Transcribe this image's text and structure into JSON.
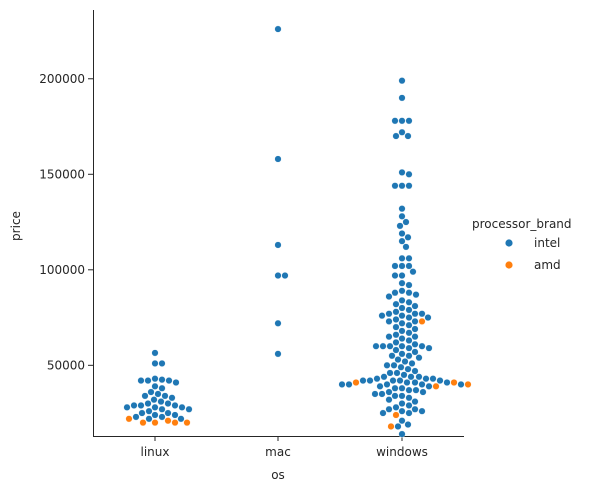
{
  "chart_data": {
    "type": "scatter",
    "subtype": "swarm",
    "title": "",
    "xlabel": "os",
    "ylabel": "price",
    "categories": [
      "linux",
      "mac",
      "windows"
    ],
    "y_ticks": [
      50000,
      100000,
      150000,
      200000
    ],
    "y_tick_labels": [
      "50000",
      "100000",
      "150000",
      "200000"
    ],
    "ylim": [
      13000,
      236000
    ],
    "grid": false,
    "legend": {
      "title": "processor_brand",
      "placement": "right",
      "entries": [
        {
          "label": "intel",
          "color": "#1f77b4"
        },
        {
          "label": "amd",
          "color": "#ff7f0e"
        }
      ]
    },
    "series": [
      {
        "name": "intel",
        "color": "#1f77b4",
        "points": {
          "linux": [
            56500,
            51000,
            51000,
            43000,
            42500,
            42000,
            42000,
            42000,
            41000,
            39000,
            38000,
            36000,
            35000,
            34000,
            34000,
            33000,
            32000,
            31000,
            30000,
            30000,
            29000,
            29000,
            29000,
            28000,
            28000,
            28000,
            27000,
            27000,
            26000,
            25000,
            25000,
            24000,
            24000,
            23000,
            23000,
            22000,
            22000
          ],
          "mac": [
            226000,
            158000,
            113000,
            97000,
            97000,
            72000,
            56000
          ],
          "windows": [
            199000,
            190000,
            178000,
            178000,
            178000,
            172000,
            170000,
            170000,
            151000,
            150000,
            144000,
            144000,
            144000,
            132000,
            128000,
            125000,
            123000,
            119000,
            117000,
            115000,
            112000,
            106000,
            106000,
            102000,
            102000,
            102000,
            99000,
            97000,
            97000,
            93000,
            92000,
            89000,
            88000,
            88000,
            87000,
            86000,
            84000,
            83000,
            82000,
            81000,
            80000,
            79000,
            78000,
            77000,
            77000,
            77000,
            76000,
            76000,
            75000,
            75000,
            74000,
            73000,
            73000,
            72000,
            71000,
            70000,
            69000,
            68000,
            67000,
            66000,
            65000,
            65000,
            64000,
            63000,
            62000,
            61000,
            60000,
            60000,
            60000,
            60000,
            60000,
            59000,
            59000,
            58000,
            57000,
            56000,
            55000,
            55000,
            54000,
            53000,
            52000,
            51000,
            50000,
            50000,
            49000,
            48000,
            47000,
            46000,
            46000,
            45000,
            44000,
            44000,
            44000,
            43000,
            43000,
            43000,
            42000,
            42000,
            42000,
            42000,
            42000,
            41000,
            41000,
            41000,
            40000,
            40000,
            40000,
            40000,
            40000,
            39000,
            39000,
            38000,
            38000,
            37000,
            37000,
            36000,
            36000,
            35000,
            35000,
            34000,
            34000,
            33000,
            32000,
            31000,
            30000,
            29000,
            28000,
            27000,
            27000,
            26000,
            26000,
            25000,
            25000,
            21000,
            19000,
            18000,
            14000
          ]
        }
      },
      {
        "name": "amd",
        "color": "#ff7f0e",
        "points": {
          "linux": [
            22000,
            21000,
            20000,
            20000,
            20000,
            20000
          ],
          "mac": [],
          "windows": [
            73000,
            41000,
            41000,
            40000,
            39000,
            24000,
            18000
          ]
        }
      }
    ]
  }
}
